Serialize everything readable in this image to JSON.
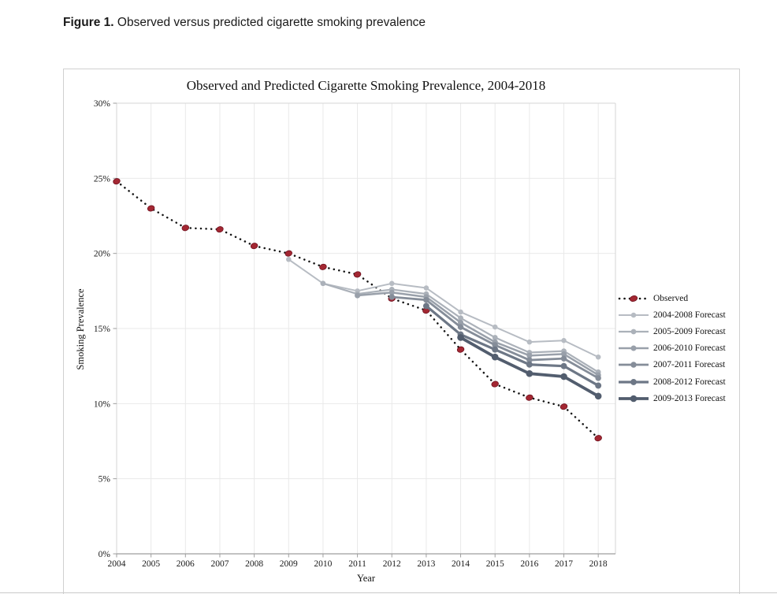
{
  "page": {
    "caption_prefix": "Figure 1.",
    "caption_text": " Observed versus predicted cigarette smoking prevalence"
  },
  "chart_data": {
    "type": "line",
    "title": "Observed and Predicted Cigarette Smoking Prevalence, 2004-2018",
    "xlabel": "Year",
    "ylabel": "Smoking Prevalence",
    "x_ticks": [
      2004,
      2005,
      2006,
      2007,
      2008,
      2009,
      2010,
      2011,
      2012,
      2013,
      2014,
      2015,
      2016,
      2017,
      2018
    ],
    "y_ticks": [
      {
        "value": 0,
        "label": "0%"
      },
      {
        "value": 5,
        "label": "5%"
      },
      {
        "value": 10,
        "label": "10%"
      },
      {
        "value": 15,
        "label": "15%"
      },
      {
        "value": 20,
        "label": "20%"
      },
      {
        "value": 25,
        "label": "25%"
      },
      {
        "value": 30,
        "label": "30%"
      }
    ],
    "ylim": [
      0,
      30
    ],
    "xlim": [
      2004,
      2018.5
    ],
    "grid": true,
    "legend_position": "right",
    "colors": {
      "grid": "#e9e9e9",
      "plot_border": "#d6d6d6",
      "axis": "#9e9e9e",
      "observed_line": "#141414",
      "observed_marker": "#a32732",
      "observed_marker_edge": "#701320"
    },
    "series": [
      {
        "name": "Observed",
        "style": "dotted",
        "color": "#141414",
        "marker": "red-ellipse",
        "marker_color": "#a32732",
        "width": 2.5,
        "start_year": 2004,
        "values": [
          24.8,
          23.0,
          21.7,
          21.6,
          20.5,
          20.0,
          19.1,
          18.6,
          17.0,
          16.2,
          13.6,
          11.3,
          10.4,
          9.8,
          7.7
        ]
      },
      {
        "name": "2004-2008 Forecast",
        "style": "solid",
        "color": "#b7bcc3",
        "marker": "circle",
        "width": 2.0,
        "start_year": 2009,
        "values": [
          19.6,
          18.0,
          17.5,
          18.0,
          17.7,
          16.1,
          15.1,
          14.1,
          14.2,
          13.1
        ]
      },
      {
        "name": "2005-2009 Forecast",
        "style": "solid",
        "color": "#abb1b9",
        "marker": "circle",
        "width": 2.2,
        "start_year": 2010,
        "values": [
          18.0,
          17.3,
          17.6,
          17.3,
          15.7,
          14.4,
          13.4,
          13.5,
          12.1
        ]
      },
      {
        "name": "2006-2010 Forecast",
        "style": "solid",
        "color": "#99a0aa",
        "marker": "circle",
        "width": 2.5,
        "start_year": 2011,
        "values": [
          17.2,
          17.4,
          17.1,
          15.4,
          14.1,
          13.2,
          13.3,
          11.9
        ]
      },
      {
        "name": "2007-2011 Forecast",
        "style": "solid",
        "color": "#858d99",
        "marker": "circle",
        "width": 2.8,
        "start_year": 2012,
        "values": [
          17.1,
          16.9,
          15.1,
          13.9,
          12.9,
          13.0,
          11.7
        ]
      },
      {
        "name": "2008-2012 Forecast",
        "style": "solid",
        "color": "#6d7786",
        "marker": "circle",
        "width": 3.2,
        "start_year": 2013,
        "values": [
          16.5,
          14.6,
          13.6,
          12.6,
          12.5,
          11.2
        ]
      },
      {
        "name": "2009-2013 Forecast",
        "style": "solid",
        "color": "#525d6e",
        "marker": "circle",
        "width": 3.8,
        "start_year": 2014,
        "values": [
          14.4,
          13.1,
          12.0,
          11.8,
          10.5
        ]
      }
    ]
  }
}
